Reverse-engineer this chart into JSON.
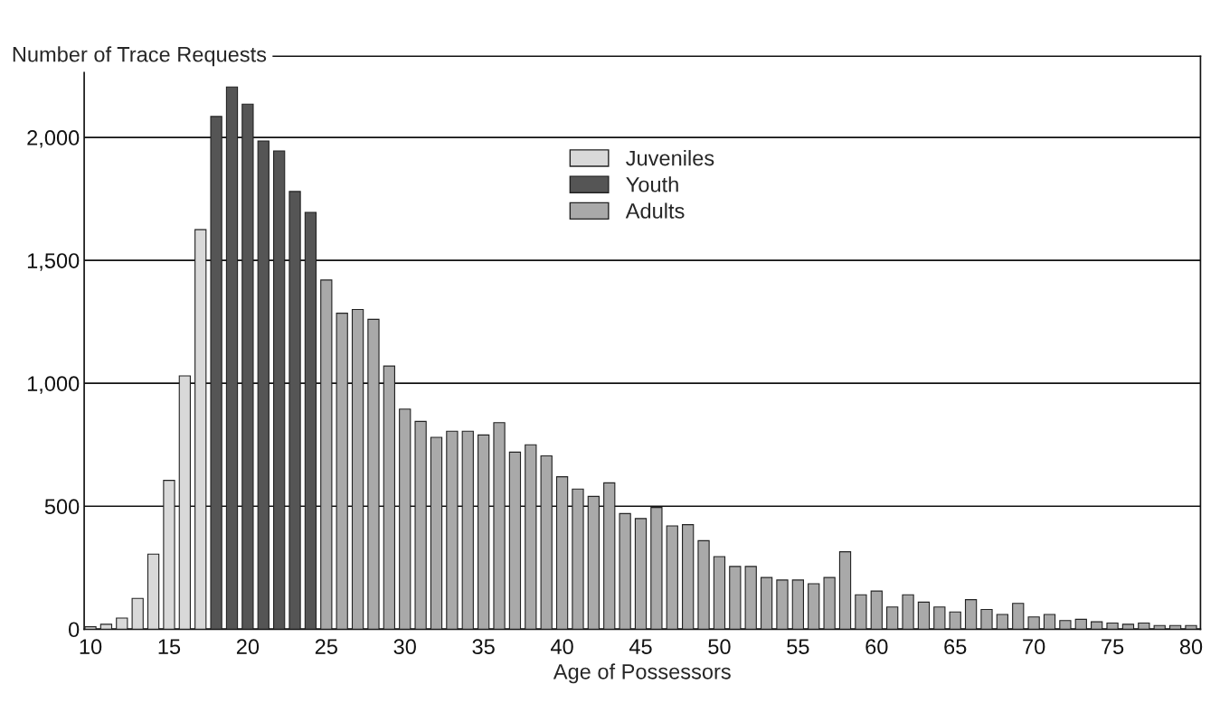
{
  "chart_data": {
    "type": "bar",
    "xlabel": "Age of Possessors",
    "ylabel": "Number of Trace Requests",
    "xlim": [
      9.6,
      80.6
    ],
    "xticks": [
      10,
      15,
      20,
      25,
      30,
      35,
      40,
      45,
      50,
      55,
      60,
      65,
      70,
      75,
      80
    ],
    "ylim": [
      0,
      2330
    ],
    "yticks": [
      0,
      {
        "value": 500,
        "label": "500"
      },
      {
        "value": 1000,
        "label": "1,000"
      },
      {
        "value": 1500,
        "label": "1,500"
      },
      {
        "value": 2000,
        "label": "2,000"
      }
    ],
    "grid": "y",
    "legend": "top center",
    "series": [
      {
        "name": "Juveniles",
        "color": "#d9d9d9",
        "x": [
          10,
          11,
          12,
          13,
          14,
          15,
          16,
          17
        ],
        "values": [
          10,
          20,
          45,
          125,
          305,
          605,
          1030,
          1625
        ]
      },
      {
        "name": "Youth",
        "color": "#555555",
        "x": [
          18,
          19,
          20,
          21,
          22,
          23,
          24
        ],
        "values": [
          2085,
          2205,
          2135,
          1985,
          1945,
          1780,
          1695
        ]
      },
      {
        "name": "Adults",
        "color": "#a9a9a9",
        "x": [
          25,
          26,
          27,
          28,
          29,
          30,
          31,
          32,
          33,
          34,
          35,
          36,
          37,
          38,
          39,
          40,
          41,
          42,
          43,
          44,
          45,
          46,
          47,
          48,
          49,
          50,
          51,
          52,
          53,
          54,
          55,
          56,
          57,
          58,
          59,
          60,
          61,
          62,
          63,
          64,
          65,
          66,
          67,
          68,
          69,
          70,
          71,
          72,
          73,
          74,
          75,
          76,
          77,
          78,
          79,
          80
        ],
        "values": [
          1420,
          1285,
          1300,
          1260,
          1070,
          895,
          845,
          780,
          805,
          805,
          790,
          840,
          720,
          750,
          705,
          620,
          570,
          540,
          595,
          470,
          450,
          495,
          420,
          425,
          360,
          295,
          255,
          255,
          210,
          200,
          200,
          185,
          210,
          315,
          140,
          155,
          90,
          140,
          110,
          90,
          70,
          120,
          80,
          60,
          105,
          50,
          60,
          35,
          40,
          30,
          25,
          20,
          25,
          15,
          15,
          15
        ]
      }
    ]
  }
}
